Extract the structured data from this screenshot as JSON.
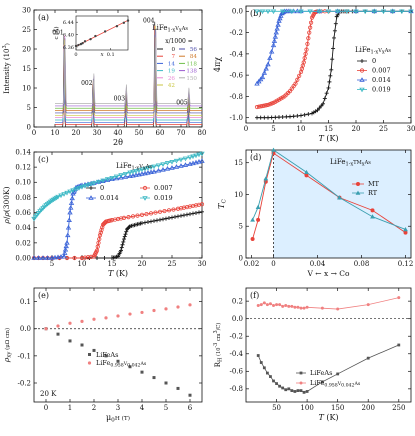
{
  "chart_data": [
    {
      "id": "a",
      "type": "line",
      "panel_label": "(a)",
      "xlabel": "2θ",
      "ylabel": "Intensity (10³)",
      "xlim": [
        0,
        80
      ],
      "ylim": [
        0,
        30
      ],
      "xticks": [
        0,
        10,
        20,
        30,
        40,
        50,
        60,
        70,
        80
      ],
      "yticks": [
        0,
        5,
        10,
        15,
        20,
        25,
        30
      ],
      "title": "LiFe1-xVxAs",
      "legend_title": "x/1000 =",
      "legend_position": "right",
      "peaks": [
        {
          "label": "001",
          "x": 14.3,
          "height": 24
        },
        {
          "label": "002",
          "x": 28.0,
          "height": 11
        },
        {
          "label": "003",
          "x": 43.5,
          "height": 7
        },
        {
          "label": "004",
          "x": 57.5,
          "height": 27
        },
        {
          "label": "005",
          "x": 73.3,
          "height": 6
        }
      ],
      "series": [
        {
          "name": "0",
          "offset": 0.0,
          "color": "#1a1a1a"
        },
        {
          "name": "7",
          "offset": 0.6,
          "color": "#e8433a"
        },
        {
          "name": "14",
          "offset": 1.2,
          "color": "#3a63d8"
        },
        {
          "name": "19",
          "offset": 1.8,
          "color": "#3ab8c4"
        },
        {
          "name": "26",
          "offset": 2.4,
          "color": "#e98ad6"
        },
        {
          "name": "42",
          "offset": 3.0,
          "color": "#c9c640"
        },
        {
          "name": "56",
          "offset": 3.6,
          "color": "#4a4aa8"
        },
        {
          "name": "84",
          "offset": 4.2,
          "color": "#d07a2a"
        },
        {
          "name": "118",
          "offset": 4.8,
          "color": "#6fbf4a"
        },
        {
          "name": "138",
          "offset": 5.4,
          "color": "#9a5ad0"
        },
        {
          "name": "150",
          "offset": 6.0,
          "color": "#b0b0b0"
        }
      ],
      "inset": {
        "type": "line",
        "xlabel": "x",
        "ylabel": "c (Å)",
        "xlim": [
          0,
          0.15
        ],
        "ylim": [
          6.35,
          6.46
        ],
        "xticks": [
          0,
          0.1
        ],
        "yticks": [
          6.36,
          6.4,
          6.44
        ],
        "x": [
          0,
          0.007,
          0.014,
          0.019,
          0.026,
          0.042,
          0.056,
          0.084,
          0.118,
          0.138,
          0.15
        ],
        "y": [
          6.363,
          6.366,
          6.369,
          6.372,
          6.378,
          6.385,
          6.395,
          6.41,
          6.427,
          6.438,
          6.445
        ]
      }
    },
    {
      "id": "b",
      "type": "line",
      "panel_label": "(b)",
      "xlabel": "T (K)",
      "ylabel": "4πχ",
      "xlim": [
        0,
        30
      ],
      "ylim": [
        -1.05,
        0.05
      ],
      "xticks": [
        0,
        5,
        10,
        15,
        20,
        25,
        30
      ],
      "yticks": [
        0.0,
        -0.2,
        -0.4,
        -0.6,
        -0.8,
        -1.0
      ],
      "title": "LiFe1-xVxAs",
      "legend_position": "right",
      "series": [
        {
          "name": "0",
          "color": "#1a1a1a",
          "x": [
            2,
            4,
            6,
            8,
            10,
            12,
            13,
            14,
            15,
            15.5,
            16,
            16.5,
            17,
            18,
            20,
            25,
            30
          ],
          "y": [
            -1.0,
            -1.0,
            -0.995,
            -0.99,
            -0.98,
            -0.96,
            -0.93,
            -0.87,
            -0.72,
            -0.55,
            -0.25,
            -0.05,
            0,
            0,
            0,
            0,
            0
          ]
        },
        {
          "name": "0.007",
          "color": "#e8433a",
          "x": [
            2,
            3,
            4,
            5,
            6,
            7,
            8,
            9,
            10,
            10.5,
            11,
            11.5,
            12,
            12.5,
            13,
            15,
            20,
            30
          ],
          "y": [
            -0.9,
            -0.89,
            -0.88,
            -0.86,
            -0.83,
            -0.8,
            -0.75,
            -0.68,
            -0.57,
            -0.48,
            -0.36,
            -0.2,
            -0.06,
            -0.01,
            0,
            0,
            0,
            0
          ]
        },
        {
          "name": "0.014",
          "color": "#3a63d8",
          "x": [
            2,
            3,
            4,
            5,
            5.5,
            6,
            6.5,
            7,
            8,
            10,
            20,
            30
          ],
          "y": [
            -0.68,
            -0.62,
            -0.5,
            -0.32,
            -0.2,
            -0.09,
            -0.02,
            0,
            0,
            0,
            0,
            0
          ]
        },
        {
          "name": "0.019",
          "color": "#3ab8c4",
          "x": [
            2,
            5,
            10,
            15,
            20,
            25,
            30
          ],
          "y": [
            0,
            0,
            0,
            0,
            0,
            0,
            0
          ]
        }
      ]
    },
    {
      "id": "c",
      "type": "line",
      "panel_label": "(c)",
      "xlabel": "T (K)",
      "ylabel": "ρ/ρ(300K)",
      "xlim": [
        2,
        30
      ],
      "ylim": [
        0,
        0.14
      ],
      "xticks": [
        5,
        10,
        15,
        20,
        25,
        30
      ],
      "yticks": [
        0.0,
        0.02,
        0.04,
        0.06,
        0.08,
        0.1,
        0.12,
        0.14
      ],
      "title": "LiFe1-xVxAs",
      "legend_position": "center",
      "series": [
        {
          "name": "0",
          "color": "#1a1a1a",
          "x": [
            2,
            5,
            10,
            15,
            16,
            16.5,
            17,
            17.5,
            18,
            19,
            20,
            22,
            24,
            26,
            28,
            30
          ],
          "y": [
            0,
            0,
            0,
            0,
            0.002,
            0.01,
            0.025,
            0.038,
            0.042,
            0.044,
            0.046,
            0.049,
            0.052,
            0.055,
            0.058,
            0.061
          ]
        },
        {
          "name": "0.007",
          "color": "#e8433a",
          "x": [
            2,
            5,
            10,
            12,
            12.5,
            13,
            13.5,
            14,
            15,
            17,
            20,
            23,
            26,
            28,
            30
          ],
          "y": [
            0,
            0,
            0,
            0.002,
            0.01,
            0.03,
            0.044,
            0.048,
            0.05,
            0.053,
            0.057,
            0.061,
            0.065,
            0.068,
            0.071
          ]
        },
        {
          "name": "0.014",
          "color": "#3a63d8",
          "x": [
            2,
            5,
            7,
            7.5,
            8,
            8.5,
            9,
            10,
            12,
            15,
            18,
            20,
            22,
            25,
            28,
            30
          ],
          "y": [
            0,
            0,
            0.002,
            0.02,
            0.06,
            0.085,
            0.093,
            0.096,
            0.099,
            0.104,
            0.108,
            0.111,
            0.114,
            0.119,
            0.124,
            0.128
          ]
        },
        {
          "name": "0.019",
          "color": "#3ab8c4",
          "x": [
            2,
            3,
            4,
            5,
            6,
            8,
            10,
            12,
            15,
            18,
            20,
            22,
            25,
            28,
            30
          ],
          "y": [
            0.052,
            0.062,
            0.07,
            0.076,
            0.081,
            0.088,
            0.094,
            0.099,
            0.106,
            0.113,
            0.117,
            0.121,
            0.127,
            0.133,
            0.138
          ]
        }
      ]
    },
    {
      "id": "d",
      "type": "line",
      "panel_label": "(d)",
      "xlabel": "V ← x → Co",
      "ylabel": "Tc",
      "xlim": [
        -0.025,
        0.125
      ],
      "ylim": [
        0,
        17
      ],
      "xticks": [
        -0.02,
        0,
        0.04,
        0.08,
        0.12
      ],
      "xticklabels": [
        "0.02",
        "0",
        "0.04",
        "0.08",
        "0.12"
      ],
      "yticks": [
        0,
        5,
        10,
        15
      ],
      "title": "LiFe1-xTMxAs",
      "legend_position": "center-right",
      "shade_color": "#dcefff",
      "series": [
        {
          "name": "MT",
          "color": "#e8433a",
          "x": [
            -0.019,
            -0.014,
            -0.007,
            0,
            0.03,
            0.06,
            0.09,
            0.12
          ],
          "y": [
            3.0,
            6.0,
            12.0,
            16.5,
            13.0,
            9.5,
            7.5,
            4.0
          ]
        },
        {
          "name": "RT",
          "color": "#3a9fb0",
          "x": [
            -0.019,
            -0.014,
            -0.007,
            0,
            0.03,
            0.06,
            0.09,
            0.12
          ],
          "y": [
            6.0,
            8.0,
            12.5,
            17.0,
            13.5,
            9.5,
            6.5,
            4.5
          ]
        }
      ]
    },
    {
      "id": "e",
      "type": "scatter",
      "panel_label": "(e)",
      "xlabel": "μ0H (T)",
      "ylabel": "ρxy (μΩ cm)",
      "xlim": [
        -0.5,
        6.5
      ],
      "ylim": [
        -0.27,
        0.15
      ],
      "xticks": [
        0,
        1,
        2,
        3,
        4,
        5,
        6
      ],
      "yticks": [
        -0.2,
        -0.1,
        0.0,
        0.1
      ],
      "annotation": "20 K",
      "legend_position": "center-right",
      "series": [
        {
          "name": "LiFeAs",
          "color": "#555555",
          "x": [
            0,
            0.5,
            1,
            1.5,
            2,
            2.5,
            3,
            3.5,
            4,
            4.5,
            5,
            5.5,
            6
          ],
          "y": [
            0,
            -0.02,
            -0.045,
            -0.06,
            -0.08,
            -0.1,
            -0.12,
            -0.14,
            -0.16,
            -0.18,
            -0.2,
            -0.22,
            -0.245
          ]
        },
        {
          "name": "LiFe0.958V0.042As",
          "color": "#f08080",
          "x": [
            0,
            0.5,
            1,
            1.5,
            2,
            2.5,
            3,
            3.5,
            4,
            4.5,
            5,
            5.5,
            6
          ],
          "y": [
            0,
            0.01,
            0.02,
            0.027,
            0.035,
            0.04,
            0.047,
            0.054,
            0.06,
            0.067,
            0.073,
            0.08,
            0.088
          ]
        }
      ]
    },
    {
      "id": "f",
      "type": "line",
      "panel_label": "(f)",
      "xlabel": "T (K)",
      "ylabel": "RH (10⁻³ cm³/C)",
      "xlim": [
        0,
        270
      ],
      "ylim": [
        -0.95,
        0.35
      ],
      "xticks": [
        50,
        100,
        150,
        200,
        250
      ],
      "yticks": [
        -0.8,
        -0.6,
        -0.4,
        -0.2,
        0.0,
        0.2
      ],
      "legend_position": "bottom-right",
      "series": [
        {
          "name": "LiFeAs",
          "color": "#555555",
          "x": [
            20,
            25,
            30,
            35,
            40,
            45,
            50,
            55,
            60,
            65,
            70,
            75,
            80,
            85,
            90,
            95,
            100,
            125,
            150,
            200,
            250
          ],
          "y": [
            -0.42,
            -0.5,
            -0.56,
            -0.62,
            -0.66,
            -0.71,
            -0.74,
            -0.77,
            -0.79,
            -0.81,
            -0.8,
            -0.82,
            -0.83,
            -0.82,
            -0.82,
            -0.84,
            -0.83,
            -0.72,
            -0.63,
            -0.45,
            -0.3
          ]
        },
        {
          "name": "LiFe0.958V0.042As",
          "color": "#f08080",
          "x": [
            20,
            25,
            30,
            35,
            40,
            45,
            50,
            55,
            60,
            65,
            70,
            75,
            80,
            85,
            90,
            95,
            100,
            125,
            150,
            200,
            250
          ],
          "y": [
            0.15,
            0.16,
            0.18,
            0.16,
            0.17,
            0.15,
            0.16,
            0.16,
            0.14,
            0.15,
            0.14,
            0.14,
            0.13,
            0.13,
            0.12,
            0.12,
            0.13,
            0.12,
            0.11,
            0.16,
            0.24
          ]
        }
      ]
    }
  ]
}
